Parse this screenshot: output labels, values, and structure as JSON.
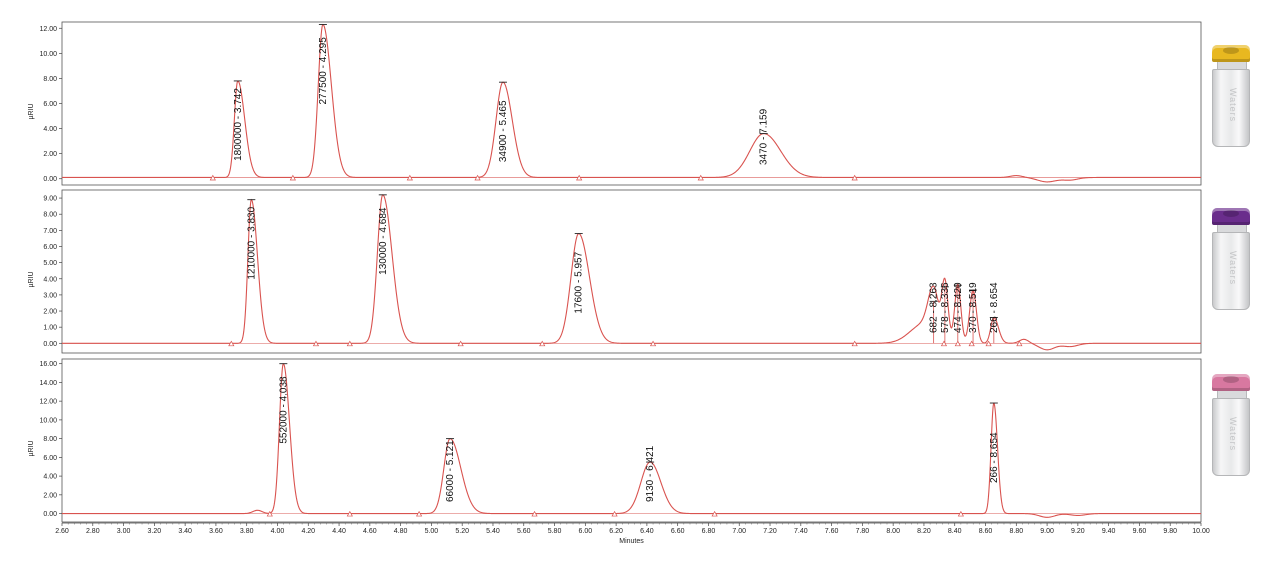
{
  "chart_data": [
    {
      "type": "line",
      "title": "",
      "xlabel": "Minutes",
      "ylabel": "µRIU",
      "xlim": [
        2.6,
        10.0
      ],
      "ylim": [
        -0.5,
        12.5
      ],
      "yticks": [
        "0.00",
        "2.00",
        "4.00",
        "6.00",
        "8.00",
        "10.00",
        "12.00"
      ],
      "baseline": 0.1,
      "grid": false,
      "series": [
        {
          "color": "#d9534f",
          "peaks": [
            {
              "rt": 3.742,
              "height": 7.8,
              "label": "1800000 - 3.742"
            },
            {
              "rt": 4.295,
              "height": 12.3,
              "label": "277500 - 4.295"
            },
            {
              "rt": 5.465,
              "height": 7.7,
              "label": "34900 - 5.465"
            },
            {
              "rt": 7.159,
              "height": 3.6,
              "label": "3470 - 7.159"
            }
          ]
        }
      ],
      "integration_markers": [
        3.58,
        4.1,
        4.86,
        5.3,
        5.96,
        6.75,
        7.75
      ],
      "vial_cap_color": "#e8b820"
    },
    {
      "type": "line",
      "title": "",
      "xlabel": "Minutes",
      "ylabel": "µRIU",
      "xlim": [
        2.6,
        10.0
      ],
      "ylim": [
        -0.6,
        9.5
      ],
      "yticks": [
        "0.00",
        "1.00",
        "2.00",
        "3.00",
        "4.00",
        "5.00",
        "6.00",
        "7.00",
        "8.00",
        "9.00"
      ],
      "baseline": 0.0,
      "grid": false,
      "series": [
        {
          "color": "#d9534f",
          "peaks": [
            {
              "rt": 3.83,
              "height": 8.9,
              "label": "1210000 - 3.830"
            },
            {
              "rt": 4.684,
              "height": 9.2,
              "label": "130000 - 4.684"
            },
            {
              "rt": 5.957,
              "height": 6.8,
              "label": "17600 - 5.957"
            },
            {
              "rt": 8.263,
              "height": 2.6,
              "label": "682 - 8.263"
            },
            {
              "rt": 8.336,
              "height": 3.5,
              "label": "578 - 8.336"
            },
            {
              "rt": 8.42,
              "height": 3.6,
              "label": "474 - 8.420"
            },
            {
              "rt": 8.519,
              "height": 3.3,
              "label": "370 - 8.519"
            },
            {
              "rt": 8.654,
              "height": 1.6,
              "label": "266 - 8.654"
            }
          ]
        }
      ],
      "integration_markers": [
        3.7,
        4.25,
        4.47,
        5.19,
        5.72,
        6.44,
        7.75,
        8.33,
        8.42,
        8.51,
        8.62,
        8.82
      ],
      "vial_cap_color": "#6a2d8c"
    },
    {
      "type": "line",
      "title": "",
      "xlabel": "Minutes",
      "ylabel": "µRIU",
      "xlim": [
        2.6,
        10.0
      ],
      "ylim": [
        -0.9,
        16.5
      ],
      "yticks": [
        "0.00",
        "2.00",
        "4.00",
        "6.00",
        "8.00",
        "10.00",
        "12.00",
        "14.00",
        "16.00"
      ],
      "baseline": 0.0,
      "grid": false,
      "series": [
        {
          "color": "#d9534f",
          "peaks": [
            {
              "rt": 4.038,
              "height": 16.0,
              "label": "552000 - 4.038"
            },
            {
              "rt": 5.121,
              "height": 8.0,
              "label": "66000 - 5.121"
            },
            {
              "rt": 6.421,
              "height": 5.5,
              "label": "9130 - 6.421"
            },
            {
              "rt": 8.654,
              "height": 11.8,
              "label": "266 - 8.654"
            }
          ]
        }
      ],
      "integration_markers": [
        3.95,
        4.47,
        4.92,
        5.67,
        6.19,
        6.84,
        8.44
      ],
      "vial_cap_color": "#d878a0"
    }
  ],
  "xaxis": {
    "ticks": [
      "2.60",
      "2.80",
      "3.00",
      "3.20",
      "3.40",
      "3.60",
      "3.80",
      "4.00",
      "4.20",
      "4.40",
      "4.60",
      "4.80",
      "5.00",
      "5.20",
      "5.40",
      "5.60",
      "5.80",
      "6.00",
      "6.20",
      "6.40",
      "6.60",
      "6.80",
      "7.00",
      "7.20",
      "7.40",
      "7.60",
      "7.80",
      "8.00",
      "8.20",
      "8.40",
      "8.60",
      "8.80",
      "9.00",
      "9.20",
      "9.40",
      "9.60",
      "9.80",
      "10.00"
    ],
    "ticks_text": "2.60 2.80 3.00 3.20 3.40 3.60 3.80 4.00 4.20 4.40 4.60 4.80 5.00 5.20 5.40 5.60 5.80 6.00 6.20 6.40 6.60 6.80 7.00 7.20 7.40 7.60 7.80 8.00 8.20 8.40 8.60 8.80 9.00 9.20 9.40 9.60 9.80 10.00",
    "title": "Minutes"
  },
  "vials": [
    {
      "label": "Waters",
      "cap_color": "#e8b820"
    },
    {
      "label": "Waters",
      "cap_color": "#6a2d8c"
    },
    {
      "label": "Waters",
      "cap_color": "#d878a0"
    }
  ]
}
